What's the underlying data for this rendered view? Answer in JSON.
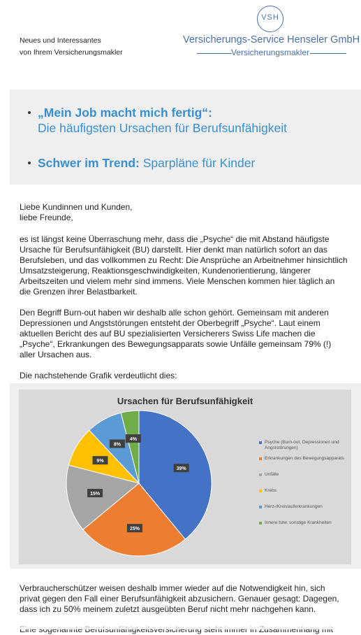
{
  "header": {
    "tagline_line1": "Neues und Interessantes",
    "tagline_line2": "von Ihrem Versicherungsmakler",
    "logo_initials": "VSH",
    "company_name": "Versicherungs-Service Henseler GmbH",
    "company_sub": "Versicherungsmakler"
  },
  "topics": {
    "t1_bold": "„Mein Job macht mich fertig“:",
    "t1_rest": "Die häufigsten Ursachen für Berufsunfähigkeit",
    "t2_bold": "Schwer im Trend:",
    "t2_rest": "Sparpläne für Kinder"
  },
  "content": {
    "greeting1": "Liebe Kundinnen und Kunden,",
    "greeting2": "liebe Freunde,",
    "p1": "es ist längst keine Überraschung mehr, dass die „Psyche“ die mit Abstand häufigste Ursache für Berufsunfähigkeit (BU) darstellt. Hier denkt man natürlich sofort an das Berufsleben, und das vollkommen zu Recht: Die Ansprüche an Arbeitnehmer hinsichtlich Umsatzsteigerung, Reaktionsgeschwindigkeiten, Kundenorientierung, längerer Arbeitszeiten und vielem mehr sind immens. Viele Menschen kommen hier täglich an die Grenzen ihrer Belastbarkeit.",
    "p2": "Den Begriff Burn-out haben wir deshalb alle schon gehört. Gemeinsam mit anderen Depressionen und Angststörungen entsteht der Oberbegriff „Psyche“. Laut einem aktuellen Bericht des auf BU spezialisierten Versicherers Swiss Life machen die „Psyche“, Erkrankungen des Bewegungsapparats sowie Unfälle gemeinsam 79% (!) aller Ursachen aus.",
    "p3": "Die nachstehende Grafik verdeutlicht dies:",
    "p4": "Verbraucherschützer weisen deshalb immer wieder auf die Notwendigkeit hin, sich privat gegen den Fall einer Berufsunfähigkeit abzusichern. Genauer gesagt: Dagegen, dass ich zu 50% meinem zuletzt ausgeübten Beruf nicht mehr nachgehen kann.",
    "p5": "Eine sogenannte Berufsunfähigkeitsversicherung steht immer in Zusammenhang mit"
  },
  "chart_data": {
    "type": "pie",
    "title": "Ursachen für Berufsunfähigkeit",
    "categories": [
      "Psyche (Burn-out, Depressionen und Angststörungen)",
      "Erkrankungen des Bewegungsapparats",
      "Unfälle",
      "Krebs",
      "Herz-/Kreislauferkrankungen",
      "Innere bzw. sonstige Krankheiten"
    ],
    "values": [
      39,
      25,
      15,
      9,
      8,
      4
    ],
    "labels": [
      "39%",
      "25%",
      "15%",
      "9%",
      "8%",
      "4%"
    ],
    "colors": [
      "#4472c4",
      "#ed7d31",
      "#a5a5a5",
      "#ffc000",
      "#5b9bd5",
      "#70ad47"
    ],
    "legend_position": "right"
  }
}
